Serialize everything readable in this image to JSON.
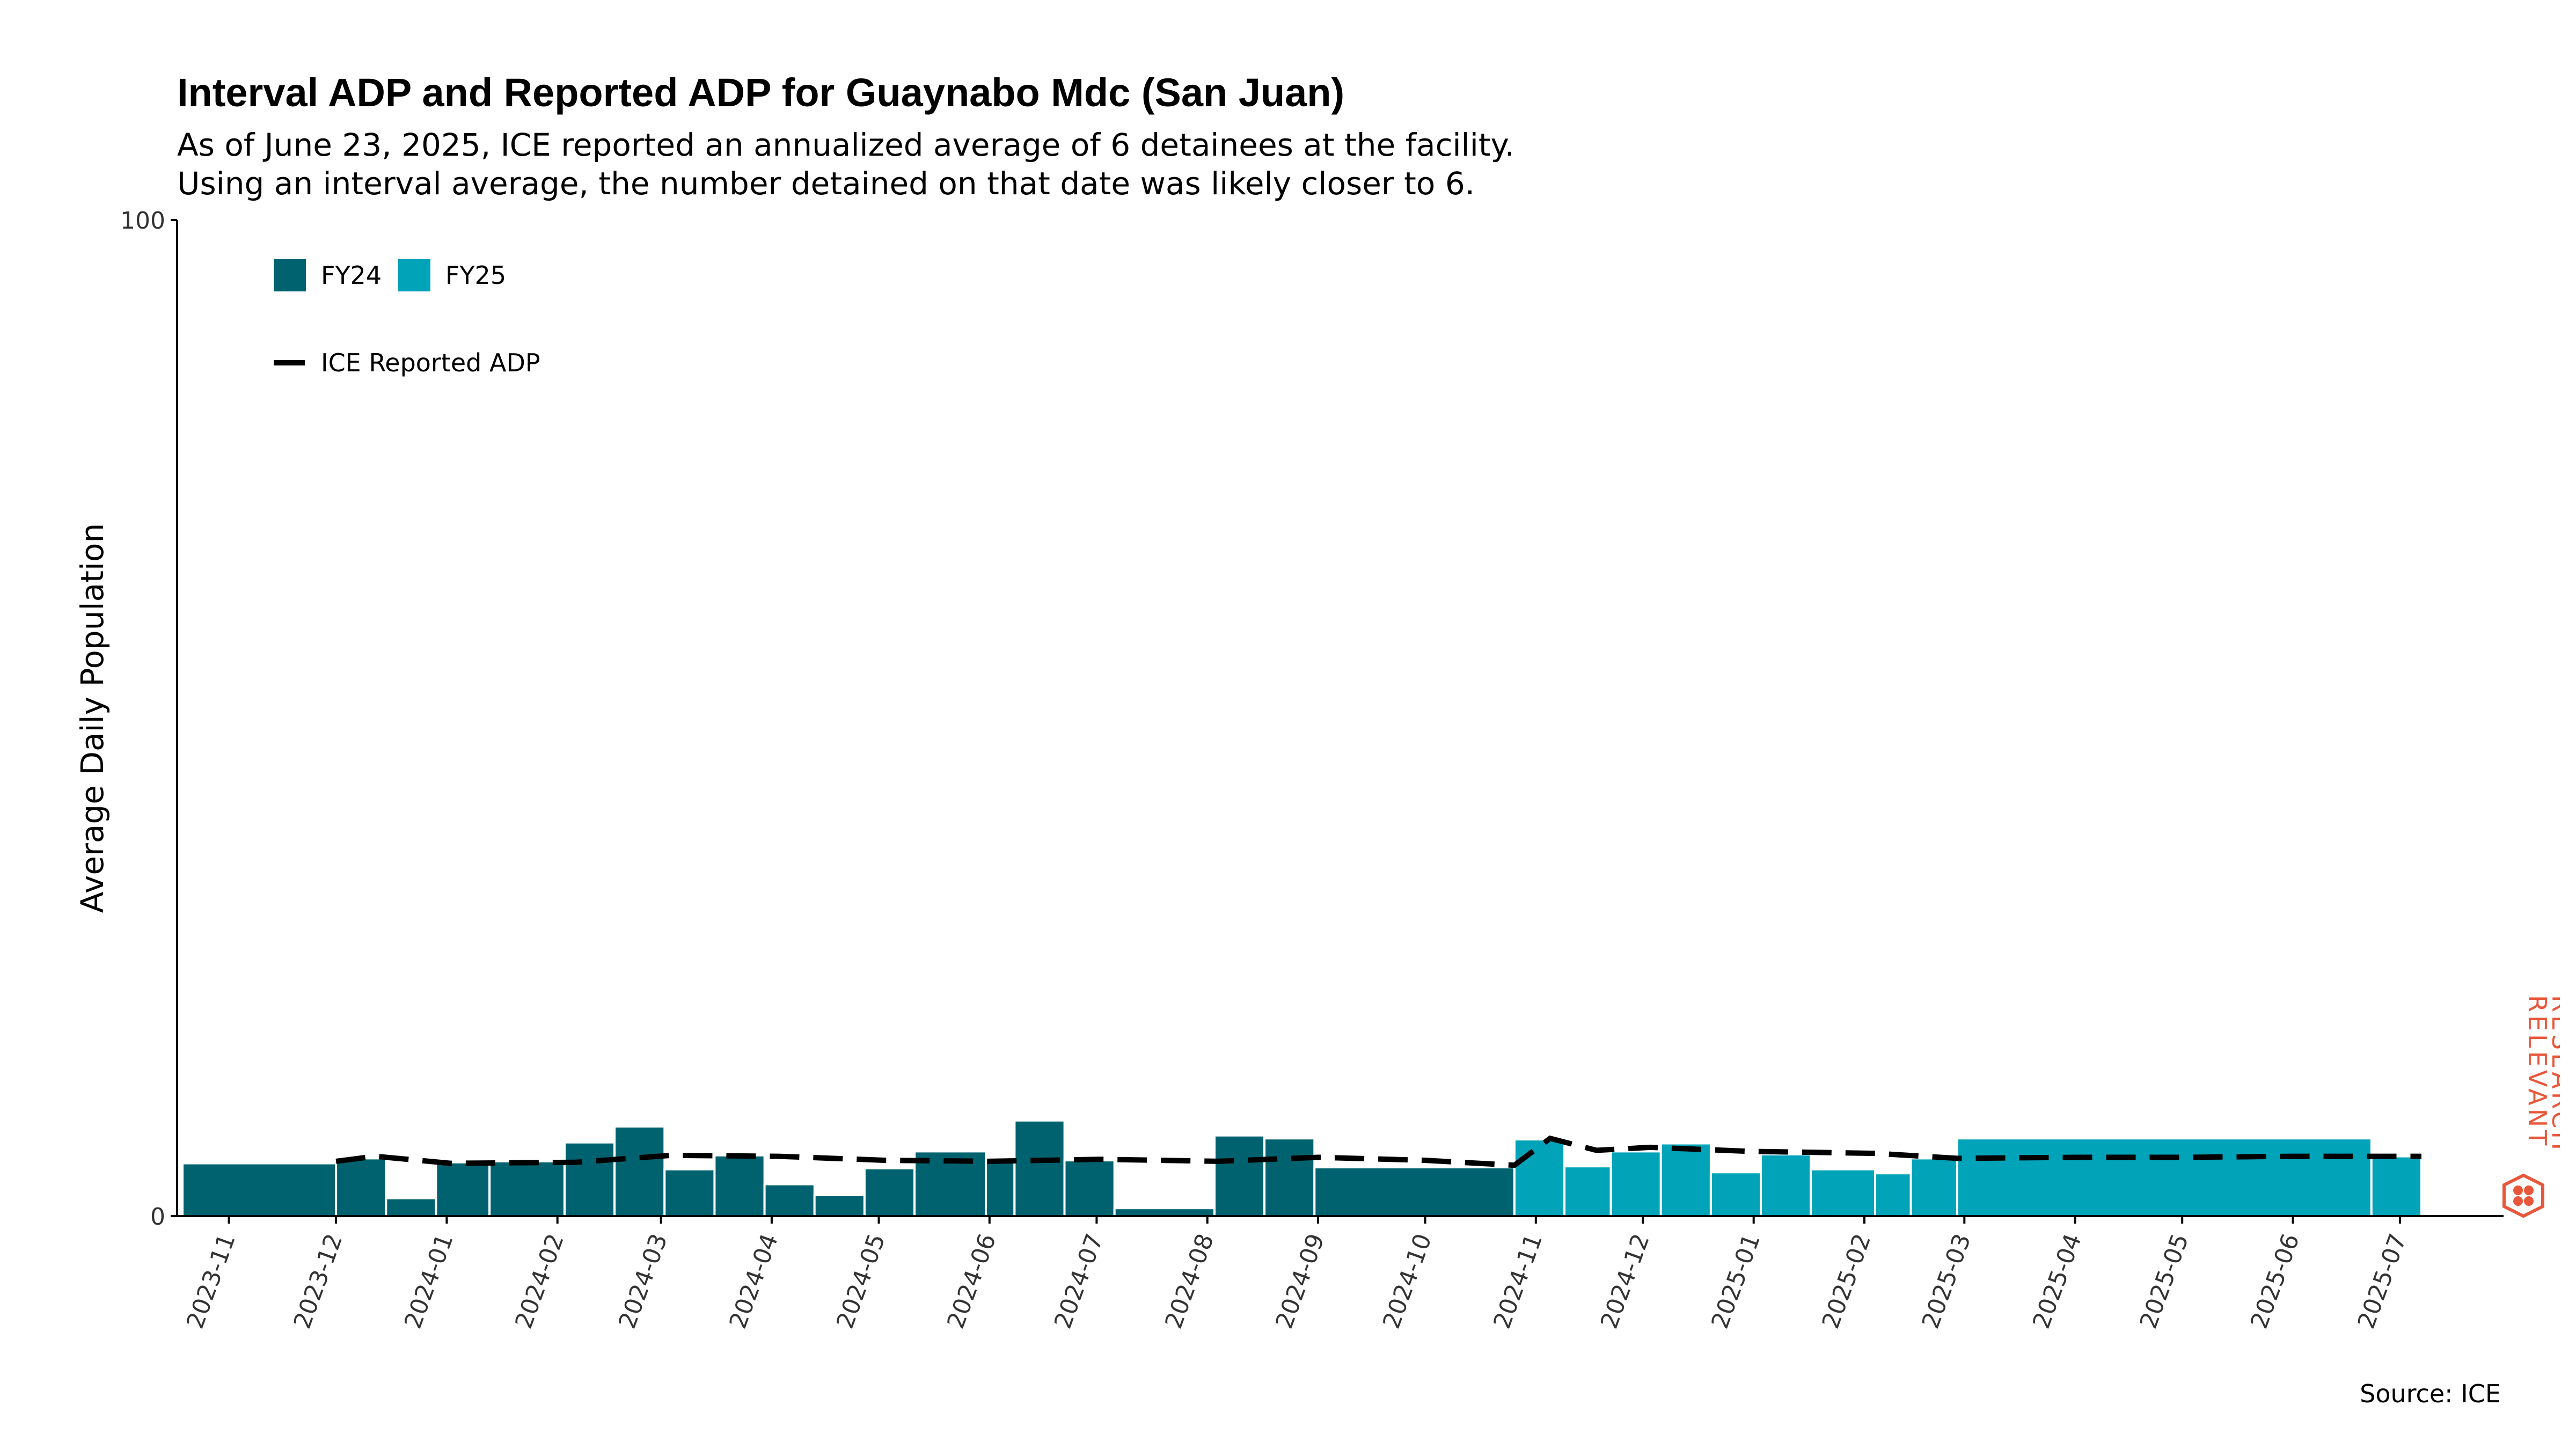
{
  "title": "Interval ADP and Reported ADP for Guaynabo Mdc (San Juan)",
  "subtitle_lines": [
    "As of June 23, 2025, ICE reported an annualized average of 6 detainees at the facility.",
    "Using an interval average, the number detained on that date was likely closer to 6."
  ],
  "source": "Source: ICE",
  "logo": {
    "line1": "RELEVANT",
    "line2": "RESEARCH",
    "color": "#e8573a"
  },
  "colors": {
    "FY24": "#00626f",
    "FY25": "#00a3b8",
    "line": "#000000",
    "axis": "#000000"
  },
  "chart_data": {
    "type": "bar",
    "ylabel": "Average Daily Population",
    "xlabel": "",
    "ylim": [
      0,
      100
    ],
    "y_ticks": [
      "0",
      "100"
    ],
    "x_ticks": [
      "2023-11",
      "2023-12",
      "2024-01",
      "2024-02",
      "2024-03",
      "2024-04",
      "2024-05",
      "2024-06",
      "2024-07",
      "2024-08",
      "2024-09",
      "2024-10",
      "2024-11",
      "2024-12",
      "2025-01",
      "2025-02",
      "2025-03",
      "2025-04",
      "2025-05",
      "2025-06",
      "2025-07"
    ],
    "legend": {
      "placement": "top-left",
      "entries": [
        "FY24",
        "FY25"
      ],
      "line_entry": "ICE Reported ADP"
    },
    "bars": [
      {
        "start": "2023-10-19",
        "end": "2023-12-01",
        "value": 5.3,
        "fy": "FY24"
      },
      {
        "start": "2023-12-01",
        "end": "2023-12-15",
        "value": 5.8,
        "fy": "FY24"
      },
      {
        "start": "2023-12-15",
        "end": "2023-12-29",
        "value": 1.8,
        "fy": "FY24"
      },
      {
        "start": "2023-12-29",
        "end": "2024-01-13",
        "value": 5.4,
        "fy": "FY24"
      },
      {
        "start": "2024-01-13",
        "end": "2024-02-03",
        "value": 5.5,
        "fy": "FY24"
      },
      {
        "start": "2024-02-03",
        "end": "2024-02-17",
        "value": 7.4,
        "fy": "FY24"
      },
      {
        "start": "2024-02-17",
        "end": "2024-03-02",
        "value": 9.0,
        "fy": "FY24"
      },
      {
        "start": "2024-03-02",
        "end": "2024-03-16",
        "value": 4.7,
        "fy": "FY24"
      },
      {
        "start": "2024-03-16",
        "end": "2024-03-30",
        "value": 6.1,
        "fy": "FY24"
      },
      {
        "start": "2024-03-30",
        "end": "2024-04-13",
        "value": 3.2,
        "fy": "FY24"
      },
      {
        "start": "2024-04-13",
        "end": "2024-04-27",
        "value": 2.1,
        "fy": "FY24"
      },
      {
        "start": "2024-04-27",
        "end": "2024-05-11",
        "value": 4.8,
        "fy": "FY24"
      },
      {
        "start": "2024-05-11",
        "end": "2024-05-31",
        "value": 6.5,
        "fy": "FY24"
      },
      {
        "start": "2024-05-31",
        "end": "2024-06-08",
        "value": 5.4,
        "fy": "FY24"
      },
      {
        "start": "2024-06-08",
        "end": "2024-06-22",
        "value": 9.6,
        "fy": "FY24"
      },
      {
        "start": "2024-06-22",
        "end": "2024-07-06",
        "value": 5.6,
        "fy": "FY24"
      },
      {
        "start": "2024-07-06",
        "end": "2024-08-03",
        "value": 0.8,
        "fy": "FY24"
      },
      {
        "start": "2024-08-03",
        "end": "2024-08-17",
        "value": 8.1,
        "fy": "FY24"
      },
      {
        "start": "2024-08-17",
        "end": "2024-08-31",
        "value": 7.8,
        "fy": "FY24"
      },
      {
        "start": "2024-08-31",
        "end": "2024-10-26",
        "value": 4.9,
        "fy": "FY24"
      },
      {
        "start": "2024-10-26",
        "end": "2024-11-09",
        "value": 7.7,
        "fy": "FY25"
      },
      {
        "start": "2024-11-09",
        "end": "2024-11-22",
        "value": 5.0,
        "fy": "FY25"
      },
      {
        "start": "2024-11-22",
        "end": "2024-12-06",
        "value": 6.5,
        "fy": "FY25"
      },
      {
        "start": "2024-12-06",
        "end": "2024-12-20",
        "value": 7.3,
        "fy": "FY25"
      },
      {
        "start": "2024-12-20",
        "end": "2025-01-03",
        "value": 4.4,
        "fy": "FY25"
      },
      {
        "start": "2025-01-03",
        "end": "2025-01-17",
        "value": 6.2,
        "fy": "FY25"
      },
      {
        "start": "2025-01-17",
        "end": "2025-02-04",
        "value": 4.7,
        "fy": "FY25"
      },
      {
        "start": "2025-02-04",
        "end": "2025-02-14",
        "value": 4.3,
        "fy": "FY25"
      },
      {
        "start": "2025-02-14",
        "end": "2025-02-27",
        "value": 5.8,
        "fy": "FY25"
      },
      {
        "start": "2025-02-27",
        "end": "2025-06-23",
        "value": 7.8,
        "fy": "FY25"
      },
      {
        "start": "2025-06-23",
        "end": "2025-07-07",
        "value": 6.0,
        "fy": "FY25"
      }
    ],
    "reported_adp": {
      "name": "ICE Reported ADP",
      "x": [
        "2023-12-01",
        "2023-12-12",
        "2024-01-02",
        "2024-02-06",
        "2024-03-04",
        "2024-04-03",
        "2024-05-03",
        "2024-06-01",
        "2024-07-02",
        "2024-08-04",
        "2024-09-01",
        "2024-10-01",
        "2024-10-26",
        "2024-11-05",
        "2024-11-18",
        "2024-12-03",
        "2024-12-31",
        "2025-02-04",
        "2025-02-27",
        "2025-04-01",
        "2025-05-01",
        "2025-06-01",
        "2025-06-23",
        "2025-07-07"
      ],
      "y": [
        5.5,
        6.0,
        5.3,
        5.4,
        6.1,
        6.0,
        5.6,
        5.5,
        5.7,
        5.5,
        5.9,
        5.6,
        5.1,
        7.8,
        6.6,
        6.9,
        6.5,
        6.3,
        5.8,
        5.9,
        5.9,
        6.0,
        6.0,
        6.0
      ]
    }
  }
}
